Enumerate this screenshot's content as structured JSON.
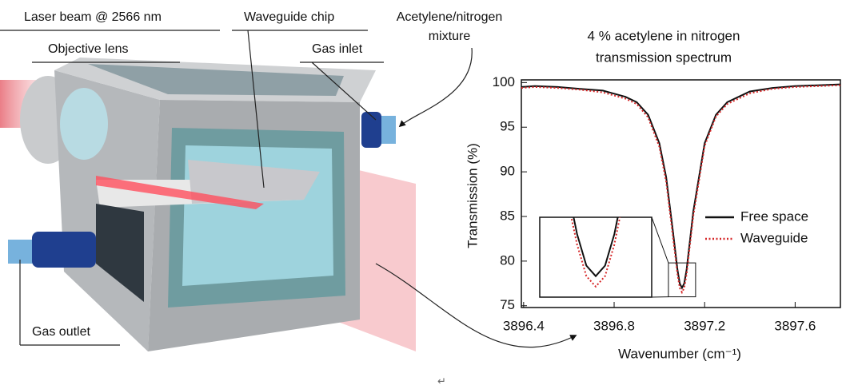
{
  "diagram": {
    "labels": {
      "laser": "Laser beam @ 2566 nm",
      "lens": "Objective lens",
      "chip": "Waveguide chip",
      "mixture": [
        "Acetylene/nitrogen",
        "mixture"
      ],
      "inlet": "Gas inlet",
      "outlet": "Gas outlet"
    },
    "footer_mark": "↵"
  },
  "chart_data": {
    "type": "line",
    "title": [
      "4 % acetylene in nitrogen",
      "transmission spectrum"
    ],
    "xlabel": "Wavenumber (cm⁻¹)",
    "ylabel": "Transmission (%)",
    "x": [
      3896.39,
      3896.45,
      3896.55,
      3896.65,
      3896.75,
      3896.85,
      3896.9,
      3896.95,
      3897.0,
      3897.03,
      3897.06,
      3897.08,
      3897.09,
      3897.1,
      3897.11,
      3897.12,
      3897.15,
      3897.2,
      3897.25,
      3897.3,
      3897.4,
      3897.5,
      3897.6,
      3897.7,
      3897.8
    ],
    "series": [
      {
        "name": "Free space",
        "color": "#111111",
        "dash": "solid",
        "values": [
          99.5,
          99.6,
          99.5,
          99.3,
          99.1,
          98.4,
          97.8,
          96.4,
          93.2,
          89.4,
          83.3,
          79.0,
          77.5,
          77.0,
          77.5,
          79.0,
          85.6,
          93.2,
          96.4,
          97.8,
          99.0,
          99.4,
          99.6,
          99.7,
          99.8
        ]
      },
      {
        "name": "Waveguide",
        "color": "#d62728",
        "dash": "dotted",
        "values": [
          99.4,
          99.5,
          99.4,
          99.2,
          98.9,
          98.2,
          97.6,
          96.1,
          92.8,
          88.9,
          82.7,
          78.5,
          77.0,
          76.5,
          77.0,
          78.5,
          85.1,
          92.9,
          96.2,
          97.6,
          98.8,
          99.3,
          99.5,
          99.6,
          99.7
        ]
      }
    ],
    "xlim": [
      3896.39,
      3897.8
    ],
    "ylim": [
      74.8,
      100.3
    ],
    "xticks": [
      3896.4,
      3896.8,
      3897.2,
      3897.6
    ],
    "yticks": [
      75,
      80,
      85,
      90,
      95,
      100
    ],
    "grid": false,
    "legend": "right",
    "inset": {
      "xlim": [
        3897.04,
        3897.16
      ],
      "ylim": [
        76,
        79.8
      ]
    }
  }
}
